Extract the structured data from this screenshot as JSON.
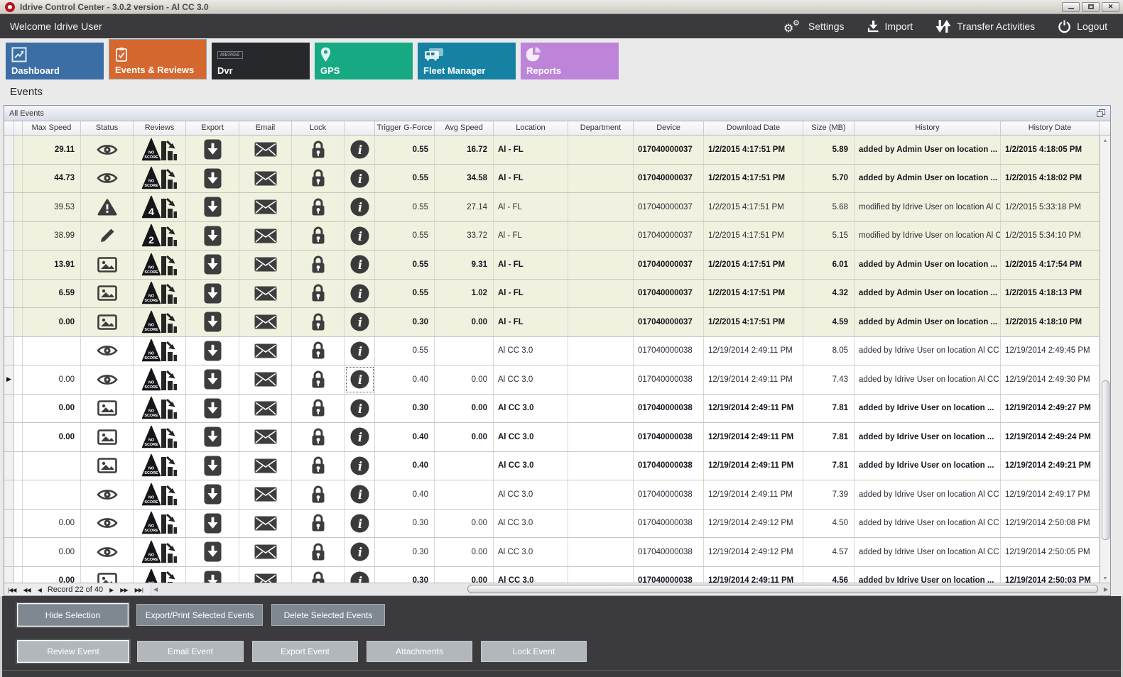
{
  "window": {
    "title": "Idrive Control Center - 3.0.2 version - Al CC 3.0",
    "controls": [
      "minimize",
      "maximize",
      "close"
    ]
  },
  "menubar": {
    "welcome": "Welcome Idrive User",
    "actions": [
      {
        "label": "Settings",
        "icon": "gears-icon"
      },
      {
        "label": "Import",
        "icon": "import-icon"
      },
      {
        "label": "Transfer Activities",
        "icon": "transfer-icon"
      },
      {
        "label": "Logout",
        "icon": "power-icon"
      }
    ]
  },
  "tabs": [
    {
      "label": "Dashboard",
      "color": "#3a6ea5",
      "icon": "dashboard-icon",
      "active": false
    },
    {
      "label": "Events & Reviews",
      "color": "#d4682f",
      "icon": "events-icon",
      "active": true
    },
    {
      "label": "Dvr",
      "color": "#26282c",
      "icon": "dvr-icon",
      "active": false
    },
    {
      "label": "GPS",
      "color": "#16a982",
      "icon": "gps-icon",
      "active": false
    },
    {
      "label": "Fleet Manager",
      "color": "#1581a3",
      "icon": "fleet-icon",
      "active": false
    },
    {
      "label": "Reports",
      "color": "#bd84da",
      "icon": "reports-icon",
      "active": false
    }
  ],
  "page_title": "Events",
  "panel": {
    "title": "All Events"
  },
  "table": {
    "headers": {
      "max_speed": "Max Speed",
      "status": "Status",
      "reviews": "Reviews",
      "export": "Export",
      "email": "Email",
      "lock": "Lock",
      "info": "",
      "trigger": "Trigger G-Force",
      "avg_speed": "Avg Speed",
      "location": "Location",
      "department": "Department",
      "device": "Device",
      "download_date": "Download Date",
      "size": "Size (MB)",
      "history": "History",
      "history_date": "History Date"
    },
    "rows": [
      {
        "id_clip": "2",
        "max_speed": "29.11",
        "status": "eye-icon",
        "review_score": "NO SCORE",
        "trigger": "0.55",
        "avg_speed": "16.72",
        "location": "Al - FL",
        "department": "",
        "device": "017040000037",
        "download_date": "1/2/2015 4:17:51 PM",
        "size": "5.89",
        "history": "added by Admin User on location ...",
        "history_date": "1/2/2015 4:18:05 PM",
        "bold": true,
        "beige": true,
        "selected": false
      },
      {
        "id_clip": "6",
        "max_speed": "44.73",
        "status": "eye-icon",
        "review_score": "NO SCORE",
        "trigger": "0.55",
        "avg_speed": "34.58",
        "location": "Al - FL",
        "department": "",
        "device": "017040000037",
        "download_date": "1/2/2015 4:17:51 PM",
        "size": "5.70",
        "history": "added by Admin User on location ...",
        "history_date": "1/2/2015 4:18:02 PM",
        "bold": true,
        "beige": true,
        "selected": false
      },
      {
        "id_clip": "4",
        "max_speed": "39.53",
        "status": "warning-icon",
        "review_score": "4",
        "trigger": "0.55",
        "avg_speed": "27.14",
        "location": "Al - FL",
        "department": "",
        "device": "017040000037",
        "download_date": "1/2/2015 4:17:51 PM",
        "size": "5.68",
        "history": "modified by Idrive User on location Al C...",
        "history_date": "1/2/2015 5:33:18 PM",
        "bold": false,
        "beige": true,
        "selected": false
      },
      {
        "id_clip": "9",
        "max_speed": "38.99",
        "status": "pencil-icon",
        "review_score": "2",
        "trigger": "0.55",
        "avg_speed": "33.72",
        "location": "Al - FL",
        "department": "",
        "device": "017040000037",
        "download_date": "1/2/2015 4:17:51 PM",
        "size": "5.15",
        "history": "modified by Idrive User on location Al C...",
        "history_date": "1/2/2015 5:34:10 PM",
        "bold": false,
        "beige": true,
        "selected": false
      },
      {
        "id_clip": "6",
        "max_speed": "13.91",
        "status": "image-icon",
        "review_score": "NO SCORE",
        "trigger": "0.55",
        "avg_speed": "9.31",
        "location": "Al - FL",
        "department": "",
        "device": "017040000037",
        "download_date": "1/2/2015 4:17:51 PM",
        "size": "6.01",
        "history": "added by Admin User on location ...",
        "history_date": "1/2/2015 4:17:54 PM",
        "bold": true,
        "beige": true,
        "selected": false
      },
      {
        "id_clip": "0",
        "max_speed": "6.59",
        "status": "image-icon",
        "review_score": "NO SCORE",
        "trigger": "0.55",
        "avg_speed": "1.02",
        "location": "Al - FL",
        "department": "",
        "device": "017040000037",
        "download_date": "1/2/2015 4:17:51 PM",
        "size": "4.32",
        "history": "added by Admin User on location ...",
        "history_date": "1/2/2015 4:18:13 PM",
        "bold": true,
        "beige": true,
        "selected": false
      },
      {
        "id_clip": "0",
        "max_speed": "0.00",
        "status": "image-icon",
        "review_score": "NO SCORE",
        "trigger": "0.30",
        "avg_speed": "0.00",
        "location": "Al - FL",
        "department": "",
        "device": "017040000037",
        "download_date": "1/2/2015 4:17:51 PM",
        "size": "4.59",
        "history": "added by Admin User on location ...",
        "history_date": "1/2/2015 4:18:10 PM",
        "bold": true,
        "beige": true,
        "selected": false
      },
      {
        "id_clip": "6",
        "max_speed": "",
        "status": "eye-icon",
        "review_score": "NO SCORE",
        "trigger": "0.55",
        "avg_speed": "",
        "location": "Al CC 3.0",
        "department": "",
        "device": "017040000038",
        "download_date": "12/19/2014 2:49:11 PM",
        "size": "8.05",
        "history": "added by Idrive User on location Al CC ...",
        "history_date": "12/19/2014 2:49:45 PM",
        "bold": false,
        "beige": false,
        "selected": false
      },
      {
        "id_clip": "7",
        "max_speed": "0.00",
        "status": "eye-icon",
        "review_score": "NO SCORE",
        "trigger": "0.40",
        "avg_speed": "0.00",
        "location": "Al CC 3.0",
        "department": "",
        "device": "017040000038",
        "download_date": "12/19/2014 2:49:11 PM",
        "size": "7.43",
        "history": "added by Idrive User on location Al CC ...",
        "history_date": "12/19/2014 2:49:30 PM",
        "bold": false,
        "beige": false,
        "selected": true
      },
      {
        "id_clip": "7",
        "max_speed": "0.00",
        "status": "image-icon",
        "review_score": "NO SCORE",
        "trigger": "0.30",
        "avg_speed": "0.00",
        "location": "Al CC 3.0",
        "department": "",
        "device": "017040000038",
        "download_date": "12/19/2014 2:49:11 PM",
        "size": "7.81",
        "history": "added by Idrive User on location ...",
        "history_date": "12/19/2014 2:49:27 PM",
        "bold": true,
        "beige": false,
        "selected": false
      },
      {
        "id_clip": "6",
        "max_speed": "0.00",
        "status": "image-icon",
        "review_score": "NO SCORE",
        "trigger": "0.40",
        "avg_speed": "0.00",
        "location": "Al CC 3.0",
        "department": "",
        "device": "017040000038",
        "download_date": "12/19/2014 2:49:11 PM",
        "size": "7.81",
        "history": "added by Idrive User on location ...",
        "history_date": "12/19/2014 2:49:24 PM",
        "bold": true,
        "beige": false,
        "selected": false
      },
      {
        "id_clip": "8",
        "max_speed": "",
        "status": "image-icon",
        "review_score": "NO SCORE",
        "trigger": "0.40",
        "avg_speed": "",
        "location": "Al CC 3.0",
        "department": "",
        "device": "017040000038",
        "download_date": "12/19/2014 2:49:11 PM",
        "size": "7.81",
        "history": "added by Idrive User on location ...",
        "history_date": "12/19/2014 2:49:21 PM",
        "bold": true,
        "beige": false,
        "selected": false
      },
      {
        "id_clip": "6",
        "max_speed": "",
        "status": "eye-icon",
        "review_score": "NO SCORE",
        "trigger": "0.40",
        "avg_speed": "",
        "location": "Al CC 3.0",
        "department": "",
        "device": "017040000038",
        "download_date": "12/19/2014 2:49:11 PM",
        "size": "7.39",
        "history": "added by Idrive User on location Al CC ...",
        "history_date": "12/19/2014 2:49:17 PM",
        "bold": false,
        "beige": false,
        "selected": false
      },
      {
        "id_clip": "6",
        "max_speed": "0.00",
        "status": "eye-icon",
        "review_score": "NO SCORE",
        "trigger": "0.30",
        "avg_speed": "0.00",
        "location": "Al CC 3.0",
        "department": "",
        "device": "017040000038",
        "download_date": "12/19/2014 2:49:12 PM",
        "size": "4.50",
        "history": "added by Idrive User on location Al CC ...",
        "history_date": "12/19/2014 2:50:08 PM",
        "bold": false,
        "beige": false,
        "selected": false
      },
      {
        "id_clip": "8",
        "max_speed": "0.00",
        "status": "eye-icon",
        "review_score": "NO SCORE",
        "trigger": "0.30",
        "avg_speed": "0.00",
        "location": "Al CC 3.0",
        "department": "",
        "device": "017040000038",
        "download_date": "12/19/2014 2:49:12 PM",
        "size": "4.57",
        "history": "added by Idrive User on location Al CC ...",
        "history_date": "12/19/2014 2:50:05 PM",
        "bold": false,
        "beige": false,
        "selected": false
      },
      {
        "id_clip": "6",
        "max_speed": "0.00",
        "status": "image-icon",
        "review_score": "NO SCORE",
        "trigger": "0.30",
        "avg_speed": "0.00",
        "location": "Al CC 3.0",
        "department": "",
        "device": "017040000038",
        "download_date": "12/19/2014 2:49:11 PM",
        "size": "4.56",
        "history": "added by Idrive User on location ...",
        "history_date": "12/19/2014 2:50:03 PM",
        "bold": true,
        "beige": false,
        "selected": false
      }
    ]
  },
  "navigator": {
    "record_text": "Record 22 of 40"
  },
  "footer": {
    "row1": [
      {
        "label": "Hide Selection",
        "focused": true
      },
      {
        "label": "Export/Print Selected Events",
        "focused": false
      },
      {
        "label": "Delete Selected  Events",
        "focused": false
      }
    ],
    "row2": [
      {
        "label": "Review Event",
        "focused": true
      },
      {
        "label": "Email Event",
        "focused": false
      },
      {
        "label": "Export Event",
        "focused": false
      },
      {
        "label": "Attachments",
        "focused": false
      },
      {
        "label": "Lock Event",
        "focused": false
      }
    ]
  },
  "colors": {
    "accent_orange": "#d4682f",
    "header_dark": "#3a3a3c",
    "row_beige": "#f1f1df",
    "icon_dark": "#3d3d3d"
  }
}
